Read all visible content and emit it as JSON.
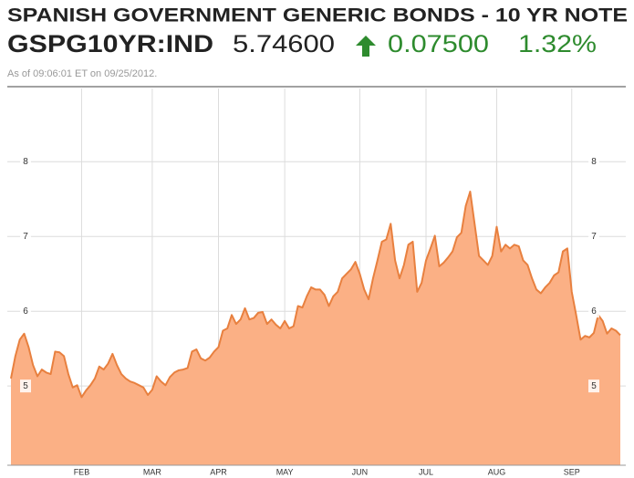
{
  "chart_data": {
    "type": "area",
    "title": "SPANISH GOVERNMENT GENERIC BONDS - 10 YR NOTE",
    "ticker": "GSPG10YR:IND",
    "price": "5.74600",
    "change": "0.07500",
    "change_percent": "1.32%",
    "timestamp": "As of 09:06:01 ET on 09/25/2012.",
    "categories": [
      null,
      null,
      null,
      null,
      null,
      null,
      null,
      null,
      null,
      null,
      null,
      null,
      null,
      null,
      null,
      null,
      "FEB",
      null,
      null,
      null,
      null,
      null,
      null,
      null,
      null,
      null,
      null,
      null,
      null,
      null,
      null,
      null,
      "MAR",
      null,
      null,
      null,
      null,
      null,
      null,
      null,
      null,
      null,
      null,
      null,
      null,
      null,
      null,
      "APR",
      null,
      null,
      null,
      null,
      null,
      null,
      null,
      null,
      null,
      null,
      null,
      null,
      null,
      null,
      "MAY",
      null,
      null,
      null,
      null,
      null,
      null,
      null,
      null,
      null,
      null,
      null,
      null,
      null,
      null,
      null,
      null,
      "JUN",
      null,
      null,
      null,
      null,
      null,
      null,
      null,
      null,
      null,
      null,
      null,
      null,
      null,
      null,
      "JUL",
      null,
      null,
      null,
      null,
      null,
      null,
      null,
      null,
      null,
      null,
      null,
      null,
      null,
      null,
      null,
      "AUG",
      null,
      null,
      null,
      null,
      null,
      null,
      null,
      null,
      null,
      null,
      null,
      null,
      null,
      null,
      null,
      null,
      "SEP",
      null,
      null,
      null,
      null,
      null,
      null,
      null,
      null,
      null,
      null,
      null
    ],
    "values": [
      5.1,
      5.4,
      5.62,
      5.7,
      5.52,
      5.28,
      5.13,
      5.22,
      5.18,
      5.16,
      5.46,
      5.45,
      5.4,
      5.16,
      4.98,
      5.01,
      4.85,
      4.94,
      5.01,
      5.1,
      5.26,
      5.22,
      5.3,
      5.43,
      5.28,
      5.16,
      5.1,
      5.06,
      5.04,
      5.01,
      4.98,
      4.88,
      4.95,
      5.13,
      5.06,
      5.01,
      5.12,
      5.18,
      5.21,
      5.22,
      5.24,
      5.46,
      5.49,
      5.37,
      5.34,
      5.38,
      5.46,
      5.52,
      5.74,
      5.77,
      5.95,
      5.83,
      5.89,
      6.04,
      5.89,
      5.91,
      5.98,
      5.99,
      5.83,
      5.89,
      5.82,
      5.77,
      5.87,
      5.77,
      5.8,
      6.07,
      6.05,
      6.2,
      6.32,
      6.29,
      6.29,
      6.22,
      6.07,
      6.2,
      6.26,
      6.44,
      6.5,
      6.56,
      6.66,
      6.5,
      6.29,
      6.16,
      6.44,
      6.68,
      6.93,
      6.96,
      7.17,
      6.68,
      6.44,
      6.62,
      6.89,
      6.93,
      6.26,
      6.38,
      6.68,
      6.84,
      7.01,
      6.6,
      6.65,
      6.72,
      6.8,
      6.99,
      7.05,
      7.41,
      7.6,
      7.17,
      6.74,
      6.68,
      6.62,
      6.74,
      7.13,
      6.8,
      6.89,
      6.84,
      6.89,
      6.87,
      6.68,
      6.62,
      6.44,
      6.29,
      6.24,
      6.32,
      6.38,
      6.48,
      6.52,
      6.8,
      6.84,
      6.26,
      5.95,
      5.62,
      5.67,
      5.65,
      5.71,
      5.95,
      5.87,
      5.7,
      5.77,
      5.74,
      5.68
    ],
    "color": "#e8803f",
    "fill_color": "#fbb085",
    "ylim": [
      3.94,
      8.98
    ],
    "yticks": [
      5,
      6,
      7,
      8
    ],
    "grid": true
  }
}
